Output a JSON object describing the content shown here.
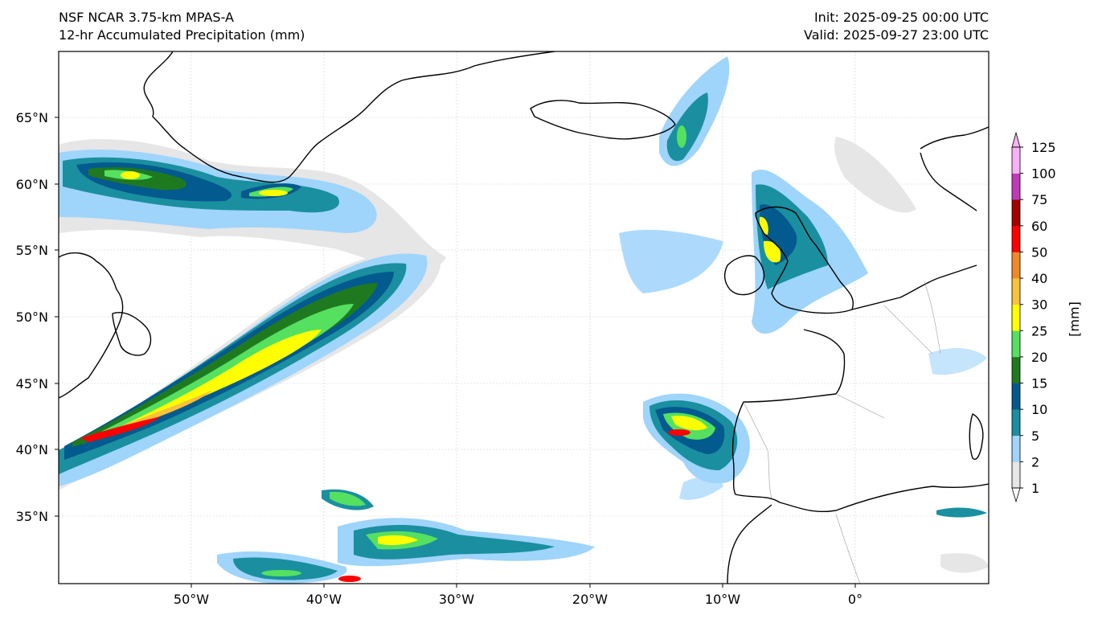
{
  "header": {
    "model": "NSF NCAR 3.75-km MPAS-A",
    "field": "12-hr Accumulated Precipitation (mm)",
    "init": "Init: 2025-09-25 00:00 UTC",
    "valid": "Valid: 2025-09-27 23:00 UTC"
  },
  "map": {
    "lat_labels": [
      "65°N",
      "60°N",
      "55°N",
      "50°N",
      "45°N",
      "40°N",
      "35°N"
    ],
    "lon_labels": [
      "50°W",
      "40°W",
      "30°W",
      "20°W",
      "10°W",
      "0°"
    ]
  },
  "colorbar": {
    "label": "[mm]",
    "levels": [
      "1",
      "2",
      "5",
      "10",
      "15",
      "20",
      "25",
      "30",
      "40",
      "50",
      "60",
      "75",
      "100",
      "125"
    ],
    "colors": [
      "#e6e6e6",
      "#9fd4fb",
      "#1a8fa0",
      "#035a8e",
      "#1f7a1f",
      "#55e060",
      "#ffff00",
      "#f8c23a",
      "#f08a28",
      "#ff0000",
      "#a30000",
      "#c03ab8",
      "#f8b0f4"
    ],
    "under_color": "#ffffff",
    "over_color": "#f8b0f4"
  }
}
